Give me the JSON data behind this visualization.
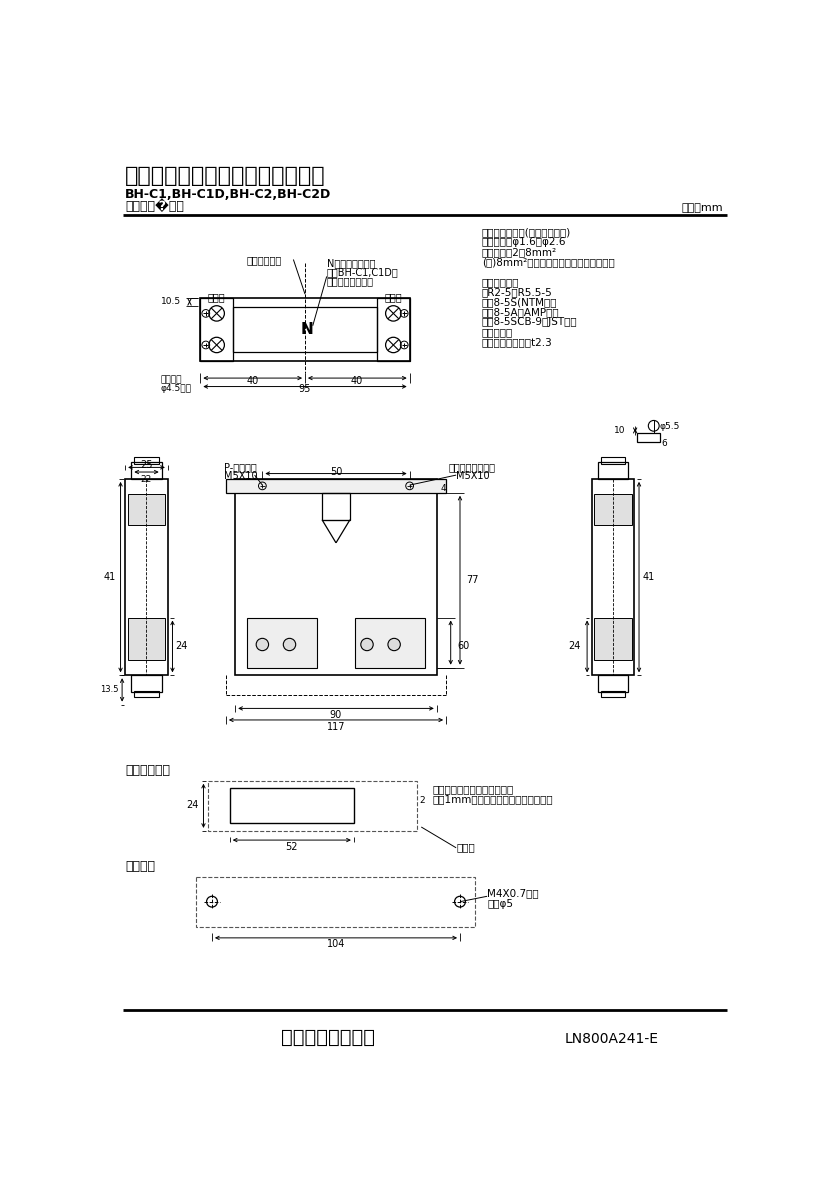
{
  "title1": "三菱分電盤用ノーヒューズ遮断器",
  "title2": "BH-C1,BH-C1D,BH-C2,BH-C2D",
  "title3": "標準外形�法図",
  "unit_label": "単位：mm",
  "footer_company": "三菱電機株式会社",
  "footer_code": "LN800A241-E",
  "bg_color": "#ffffff",
  "line_color": "#000000",
  "spec_lines": [
    "適合電線サイズ(負荷端子のみ)",
    "　単線　：φ1.6～φ2.6",
    "　より線：2～8mm²",
    "(注)8mm²電線は圧着端子をご使用下さい",
    "",
    "適合圧着端子",
    "　R2-5～R5.5-5",
    "　　8-5S(NTM社）",
    "　　8-5A（AMP社）",
    "　　8-5SCB-9（JST社）",
    "導帯加工図",
    "　最大導帯板厚　t2.3"
  ]
}
